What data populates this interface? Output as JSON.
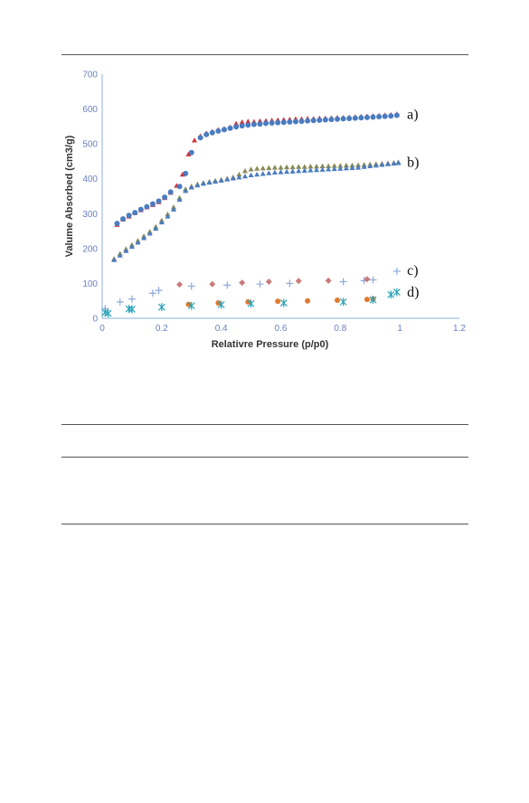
{
  "colors": {
    "red": "#d2343c",
    "blue": "#4a7cc0",
    "olive": "#8a8a55",
    "pink": "#c97b7b",
    "orange": "#e07a2c",
    "lightblue": "#8da8d8",
    "teal": "#2aa3b8",
    "axis": "#8db2e0",
    "tick": "#6b7fbf"
  },
  "chart_data": {
    "type": "scatter",
    "xlabel": "Relativre Pressure (p/p0)",
    "ylabel": "Valume Absorbed (cm3/g)",
    "xlim": [
      0,
      1.2
    ],
    "ylim": [
      0,
      700
    ],
    "x_ticks": [
      "0",
      "0.2",
      "0.4",
      "0.6",
      "0.8",
      "1",
      "1.2"
    ],
    "y_ticks": [
      "0",
      "100",
      "200",
      "300",
      "400",
      "500",
      "600",
      "700"
    ],
    "grid": false,
    "curve_labels": [
      {
        "text": "a)",
        "x": 1.0,
        "y": 585
      },
      {
        "text": "b)",
        "x": 1.0,
        "y": 447
      },
      {
        "text": "c)",
        "x": 1.0,
        "y": 138
      },
      {
        "text": "d)",
        "x": 1.0,
        "y": 75
      }
    ],
    "series": [
      {
        "marker": "triangle",
        "color": "red",
        "points": [
          [
            0.05,
            268
          ],
          [
            0.07,
            283
          ],
          [
            0.09,
            292
          ],
          [
            0.11,
            302
          ],
          [
            0.13,
            310
          ],
          [
            0.15,
            318
          ],
          [
            0.17,
            325
          ],
          [
            0.19,
            333
          ],
          [
            0.21,
            345
          ],
          [
            0.23,
            360
          ],
          [
            0.25,
            380
          ],
          [
            0.27,
            412
          ],
          [
            0.29,
            470
          ],
          [
            0.31,
            510
          ],
          [
            0.33,
            522
          ],
          [
            0.35,
            530
          ],
          [
            0.37,
            535
          ],
          [
            0.39,
            540
          ],
          [
            0.41,
            543
          ],
          [
            0.43,
            547
          ],
          [
            0.45,
            558
          ],
          [
            0.47,
            562
          ],
          [
            0.49,
            564
          ],
          [
            0.51,
            563
          ],
          [
            0.53,
            565
          ],
          [
            0.55,
            566
          ],
          [
            0.57,
            567
          ],
          [
            0.59,
            568
          ],
          [
            0.61,
            569
          ],
          [
            0.63,
            570
          ],
          [
            0.65,
            571
          ],
          [
            0.67,
            571
          ],
          [
            0.69,
            572
          ],
          [
            0.71,
            572
          ],
          [
            0.73,
            573
          ],
          [
            0.75,
            573
          ],
          [
            0.77,
            574
          ],
          [
            0.79,
            575
          ],
          [
            0.81,
            575
          ],
          [
            0.83,
            576
          ],
          [
            0.85,
            577
          ],
          [
            0.87,
            578
          ],
          [
            0.89,
            579
          ],
          [
            0.91,
            580
          ],
          [
            0.93,
            581
          ],
          [
            0.95,
            582
          ],
          [
            0.97,
            583
          ],
          [
            0.99,
            585
          ]
        ]
      },
      {
        "marker": "circle",
        "color": "blue",
        "points": [
          [
            0.05,
            272
          ],
          [
            0.07,
            285
          ],
          [
            0.09,
            295
          ],
          [
            0.11,
            303
          ],
          [
            0.13,
            312
          ],
          [
            0.15,
            320
          ],
          [
            0.17,
            328
          ],
          [
            0.19,
            336
          ],
          [
            0.21,
            347
          ],
          [
            0.23,
            362
          ],
          [
            0.26,
            378
          ],
          [
            0.28,
            415
          ],
          [
            0.3,
            475
          ],
          [
            0.33,
            518
          ],
          [
            0.35,
            527
          ],
          [
            0.37,
            532
          ],
          [
            0.39,
            537
          ],
          [
            0.41,
            541
          ],
          [
            0.43,
            545
          ],
          [
            0.45,
            549
          ],
          [
            0.47,
            552
          ],
          [
            0.49,
            554
          ],
          [
            0.51,
            556
          ],
          [
            0.53,
            557
          ],
          [
            0.55,
            559
          ],
          [
            0.57,
            560
          ],
          [
            0.59,
            561
          ],
          [
            0.61,
            562
          ],
          [
            0.63,
            563
          ],
          [
            0.65,
            564
          ],
          [
            0.67,
            565
          ],
          [
            0.69,
            566
          ],
          [
            0.71,
            567
          ],
          [
            0.73,
            568
          ],
          [
            0.75,
            569
          ],
          [
            0.77,
            570
          ],
          [
            0.79,
            571
          ],
          [
            0.81,
            572
          ],
          [
            0.83,
            573
          ],
          [
            0.85,
            574
          ],
          [
            0.87,
            575
          ],
          [
            0.89,
            576
          ],
          [
            0.91,
            577
          ],
          [
            0.93,
            578
          ],
          [
            0.95,
            579
          ],
          [
            0.97,
            580
          ],
          [
            0.99,
            582
          ]
        ]
      },
      {
        "marker": "triangle",
        "color": "olive",
        "points": [
          [
            0.04,
            170
          ],
          [
            0.06,
            185
          ],
          [
            0.08,
            198
          ],
          [
            0.1,
            210
          ],
          [
            0.12,
            222
          ],
          [
            0.14,
            235
          ],
          [
            0.16,
            248
          ],
          [
            0.18,
            262
          ],
          [
            0.2,
            280
          ],
          [
            0.22,
            298
          ],
          [
            0.24,
            318
          ],
          [
            0.26,
            345
          ],
          [
            0.28,
            370
          ],
          [
            0.3,
            378
          ],
          [
            0.32,
            384
          ],
          [
            0.34,
            388
          ],
          [
            0.36,
            391
          ],
          [
            0.38,
            394
          ],
          [
            0.4,
            397
          ],
          [
            0.42,
            400
          ],
          [
            0.44,
            404
          ],
          [
            0.46,
            412
          ],
          [
            0.48,
            422
          ],
          [
            0.5,
            427
          ],
          [
            0.52,
            429
          ],
          [
            0.54,
            430
          ],
          [
            0.56,
            431
          ],
          [
            0.58,
            432
          ],
          [
            0.6,
            432
          ],
          [
            0.62,
            433
          ],
          [
            0.64,
            433
          ],
          [
            0.66,
            434
          ],
          [
            0.68,
            434
          ],
          [
            0.7,
            435
          ],
          [
            0.72,
            435
          ],
          [
            0.74,
            436
          ],
          [
            0.76,
            436
          ],
          [
            0.78,
            437
          ],
          [
            0.8,
            437
          ],
          [
            0.82,
            438
          ],
          [
            0.84,
            438
          ],
          [
            0.86,
            439
          ],
          [
            0.88,
            440
          ],
          [
            0.9,
            441
          ],
          [
            0.92,
            442
          ],
          [
            0.94,
            443
          ],
          [
            0.96,
            444
          ],
          [
            0.98,
            445
          ],
          [
            0.995,
            447
          ]
        ]
      },
      {
        "marker": "triangle",
        "color": "blue",
        "points": [
          [
            0.04,
            167
          ],
          [
            0.06,
            180
          ],
          [
            0.08,
            193
          ],
          [
            0.1,
            205
          ],
          [
            0.12,
            217
          ],
          [
            0.14,
            230
          ],
          [
            0.16,
            243
          ],
          [
            0.18,
            257
          ],
          [
            0.2,
            275
          ],
          [
            0.22,
            292
          ],
          [
            0.24,
            312
          ],
          [
            0.26,
            340
          ],
          [
            0.28,
            365
          ],
          [
            0.3,
            375
          ],
          [
            0.32,
            381
          ],
          [
            0.34,
            386
          ],
          [
            0.36,
            389
          ],
          [
            0.38,
            392
          ],
          [
            0.4,
            395
          ],
          [
            0.42,
            398
          ],
          [
            0.44,
            401
          ],
          [
            0.46,
            404
          ],
          [
            0.48,
            407
          ],
          [
            0.5,
            410
          ],
          [
            0.52,
            412
          ],
          [
            0.54,
            414
          ],
          [
            0.56,
            416
          ],
          [
            0.58,
            418
          ],
          [
            0.6,
            419
          ],
          [
            0.62,
            420
          ],
          [
            0.64,
            421
          ],
          [
            0.66,
            422
          ],
          [
            0.68,
            423
          ],
          [
            0.7,
            424
          ],
          [
            0.72,
            425
          ],
          [
            0.74,
            426
          ],
          [
            0.76,
            427
          ],
          [
            0.78,
            428
          ],
          [
            0.8,
            429
          ],
          [
            0.82,
            430
          ],
          [
            0.84,
            431
          ],
          [
            0.86,
            432
          ],
          [
            0.88,
            434
          ],
          [
            0.9,
            436
          ],
          [
            0.92,
            438
          ],
          [
            0.94,
            440
          ],
          [
            0.96,
            442
          ],
          [
            0.98,
            444
          ],
          [
            0.995,
            445
          ]
        ]
      },
      {
        "marker": "plus",
        "color": "lightblue",
        "points": [
          [
            0.01,
            28
          ],
          [
            0.06,
            47
          ],
          [
            0.1,
            55
          ],
          [
            0.17,
            72
          ],
          [
            0.19,
            80
          ],
          [
            0.3,
            92
          ],
          [
            0.42,
            95
          ],
          [
            0.53,
            98
          ],
          [
            0.63,
            100
          ],
          [
            0.81,
            105
          ],
          [
            0.88,
            108
          ],
          [
            0.91,
            110
          ],
          [
            0.99,
            135
          ]
        ]
      },
      {
        "marker": "diamond",
        "color": "pink",
        "points": [
          [
            0.26,
            97
          ],
          [
            0.37,
            98
          ],
          [
            0.47,
            102
          ],
          [
            0.56,
            105
          ],
          [
            0.66,
            107
          ],
          [
            0.76,
            108
          ],
          [
            0.89,
            112
          ]
        ]
      },
      {
        "marker": "circle",
        "color": "orange",
        "points": [
          [
            0.29,
            40
          ],
          [
            0.39,
            44
          ],
          [
            0.49,
            47
          ],
          [
            0.59,
            49
          ],
          [
            0.69,
            50
          ],
          [
            0.79,
            52
          ],
          [
            0.89,
            54
          ],
          [
            0.91,
            55
          ]
        ]
      },
      {
        "marker": "star",
        "color": "teal",
        "points": [
          [
            0.01,
            17
          ],
          [
            0.02,
            14
          ],
          [
            0.09,
            27
          ],
          [
            0.1,
            26
          ],
          [
            0.2,
            32
          ],
          [
            0.3,
            36
          ],
          [
            0.4,
            39
          ],
          [
            0.5,
            42
          ],
          [
            0.61,
            44
          ],
          [
            0.81,
            47
          ],
          [
            0.91,
            53
          ],
          [
            0.97,
            68
          ],
          [
            0.99,
            75
          ]
        ]
      }
    ]
  }
}
